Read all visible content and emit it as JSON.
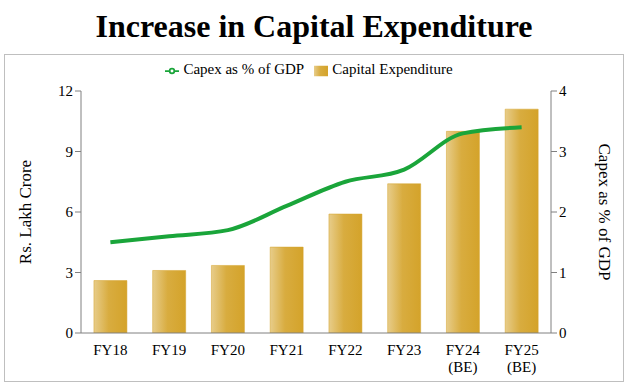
{
  "chart_data": {
    "type": "bar",
    "title": "Increase in Capital Expenditure",
    "categories": [
      "FY18",
      "FY19",
      "FY20",
      "FY21",
      "FY22",
      "FY23",
      "FY24 (BE)",
      "FY25 (BE)"
    ],
    "ylabel": "Rs. Lakh Crore",
    "y2label": "Capex as % of GDP",
    "series": [
      {
        "name": "Capital Expenditure",
        "type": "bar",
        "color": "#d4a32a",
        "values": [
          2.6,
          3.1,
          3.35,
          4.26,
          5.9,
          7.4,
          10.0,
          11.1
        ]
      },
      {
        "name": "Capex as % of GDP",
        "type": "line",
        "color": "#1aa53a",
        "axis": "y2",
        "marker": "none",
        "values": [
          1.5,
          1.6,
          1.7,
          2.1,
          2.5,
          2.7,
          3.3,
          3.4
        ]
      }
    ],
    "ylim": [
      0,
      12
    ],
    "yticks": [
      0,
      3,
      6,
      9,
      12
    ],
    "y2lim": [
      0,
      4
    ],
    "y2ticks": [
      0,
      1,
      2,
      3,
      4
    ],
    "grid": false,
    "legend": "top"
  }
}
